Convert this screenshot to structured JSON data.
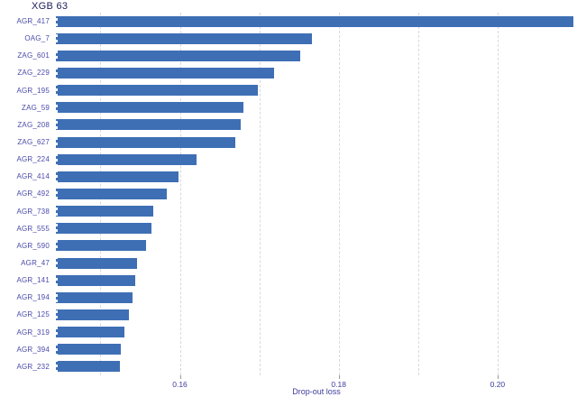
{
  "chart_data": {
    "type": "bar",
    "orientation": "horizontal",
    "title": "XGB 63",
    "xlabel": "Drop-out loss",
    "categories": [
      "AGR_417",
      "OAG_7",
      "ZAG_601",
      "ZAG_229",
      "AGR_195",
      "ZAG_59",
      "ZAG_208",
      "ZAG_627",
      "AGR_224",
      "AGR_414",
      "AGR_492",
      "AGR_738",
      "AGR_555",
      "AGR_590",
      "AGR_47",
      "AGR_141",
      "AGR_194",
      "AGR_125",
      "AGR_319",
      "AGR_394",
      "AGR_232"
    ],
    "values": [
      0.2095,
      0.1766,
      0.1752,
      0.1719,
      0.1698,
      0.168,
      0.1677,
      0.167,
      0.1621,
      0.1598,
      0.1583,
      0.1567,
      0.1564,
      0.1557,
      0.1546,
      0.1544,
      0.154,
      0.1536,
      0.153,
      0.1526,
      0.1525
    ],
    "bar_base": 0.1444,
    "xlim": [
      0.1444,
      0.21
    ],
    "x_ticks": [
      0.16,
      0.18,
      0.2
    ],
    "x_tick_labels": [
      "0.16",
      "0.18",
      "0.20"
    ],
    "gridlines": [
      0.15,
      0.16,
      0.17,
      0.18,
      0.19,
      0.2
    ],
    "grid": "vertical-dashed",
    "legend_position": "none",
    "colors": {
      "bar": "#3e6fb5",
      "y_label": "#4a4aaa",
      "tick_label": "#3c3c9e",
      "title": "#20205e",
      "gridline": "#d9d9d9",
      "start_dash": "#ffffff"
    }
  }
}
